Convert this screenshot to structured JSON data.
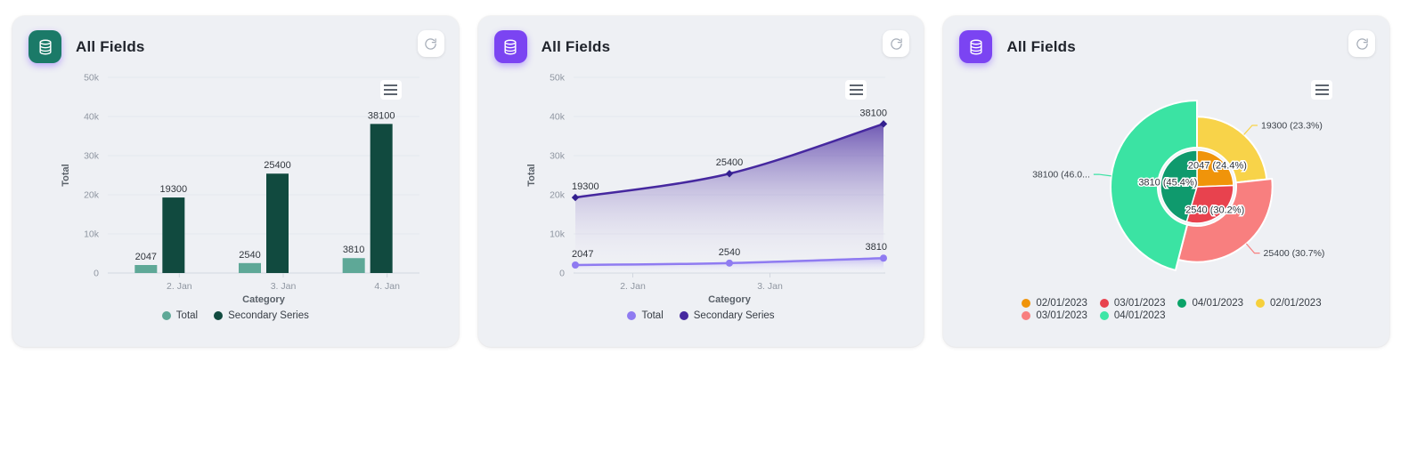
{
  "cards": [
    {
      "title": "All Fields",
      "icon": {
        "name": "database-icon",
        "bg": "#1b7a68"
      },
      "chart_data": {
        "type": "bar",
        "categories": [
          "2. Jan",
          "3. Jan",
          "4. Jan"
        ],
        "series": [
          {
            "name": "Total",
            "values": [
              2047,
              2540,
              3810
            ],
            "color": "#5ea897"
          },
          {
            "name": "Secondary Series",
            "values": [
              19300,
              25400,
              38100
            ],
            "color": "#114a3f"
          }
        ],
        "data_labels": [
          "2047",
          "2540",
          "3810",
          "19300",
          "25400",
          "38100"
        ],
        "xlabel": "Category",
        "ylabel": "Total",
        "ylim": [
          0,
          50000
        ],
        "yticks": [
          0,
          10000,
          20000,
          30000,
          40000,
          50000
        ],
        "ytick_labels": [
          "0",
          "10k",
          "20k",
          "30k",
          "40k",
          "50k"
        ],
        "legend_position": "bottom",
        "grid": true
      }
    },
    {
      "title": "All Fields",
      "icon": {
        "name": "database-icon",
        "bg": "#7b44f2"
      },
      "chart_data": {
        "type": "area",
        "x": [
          "02/01/2023",
          "03/01/2023",
          "04/01/2023"
        ],
        "xtick_labels": [
          "2. Jan",
          "3. Jan"
        ],
        "series": [
          {
            "name": "Total",
            "values": [
              2047,
              2540,
              3810
            ],
            "color": "#8f7bf1",
            "marker": "circle"
          },
          {
            "name": "Secondary Series",
            "values": [
              19300,
              25400,
              38100
            ],
            "color": "#46289f",
            "marker": "diamond"
          }
        ],
        "data_labels": [
          "2047",
          "2540",
          "3810",
          "19300",
          "25400",
          "38100"
        ],
        "xlabel": "Category",
        "ylabel": "Total",
        "ylim": [
          0,
          50000
        ],
        "yticks": [
          0,
          10000,
          20000,
          30000,
          40000,
          50000
        ],
        "ytick_labels": [
          "0",
          "10k",
          "20k",
          "30k",
          "40k",
          "50k"
        ],
        "legend_position": "bottom",
        "grid": true
      }
    },
    {
      "title": "All Fields",
      "icon": {
        "name": "database-icon",
        "bg": "#7b44f2"
      },
      "chart_data": {
        "type": "pie",
        "subtype": "nested-donut",
        "inner_ring": [
          {
            "label": "02/01/2023",
            "value": 2047,
            "pct": 24.4,
            "color": "#f0940a",
            "data_label": "2047 (24.4%)"
          },
          {
            "label": "03/01/2023",
            "value": 2540,
            "pct": 30.2,
            "color": "#e8424e",
            "data_label": "2540 (30.2%)"
          },
          {
            "label": "04/01/2023",
            "value": 3810,
            "pct": 45.4,
            "color": "#0f9a6d",
            "data_label": "3810 (45.4%)"
          }
        ],
        "outer_ring": [
          {
            "label": "02/01/2023",
            "value": 19300,
            "pct": 23.3,
            "color": "#f8d349",
            "data_label": "19300 (23.3%)"
          },
          {
            "label": "03/01/2023",
            "value": 25400,
            "pct": 30.7,
            "color": "#f87f7f",
            "data_label": "25400 (30.7%)"
          },
          {
            "label": "04/01/2023",
            "value": 38100,
            "pct": 46.0,
            "color": "#3be3a3",
            "data_label": "38100 (46.0..."
          }
        ],
        "legend": [
          {
            "label": "02/01/2023",
            "color": "#f0940a"
          },
          {
            "label": "03/01/2023",
            "color": "#e8424e"
          },
          {
            "label": "04/01/2023",
            "color": "#0aa368"
          },
          {
            "label": "02/01/2023",
            "color": "#f6d03c"
          },
          {
            "label": "03/01/2023",
            "color": "#f87f7f"
          },
          {
            "label": "04/01/2023",
            "color": "#3ce6a6"
          }
        ],
        "legend_position": "bottom"
      }
    }
  ]
}
